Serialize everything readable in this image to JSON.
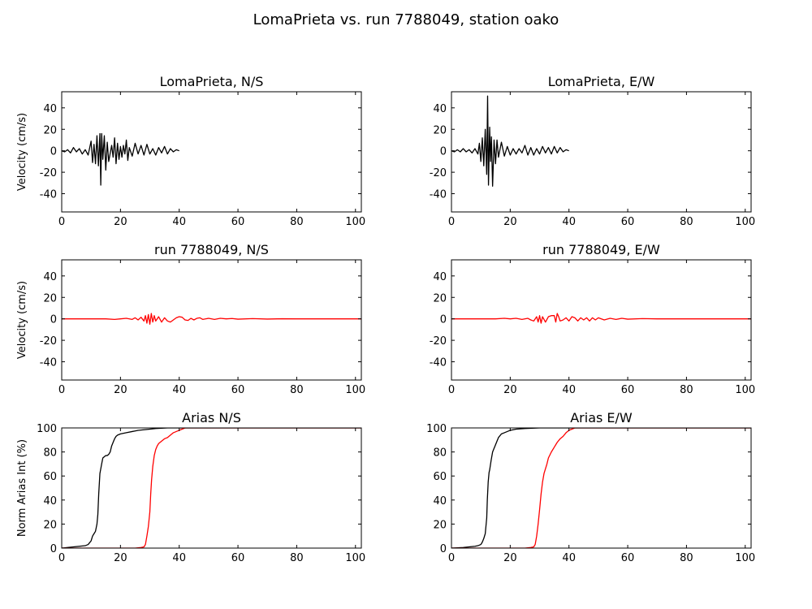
{
  "figure": {
    "title": "LomaPrieta vs. run 7788049, station oako"
  },
  "colors": {
    "recorded": "#000000",
    "simulated": "#ff0000",
    "axes": "#000000",
    "background": "#ffffff"
  },
  "chart_data": [
    {
      "id": "lp-ns",
      "type": "line",
      "title": "LomaPrieta, N/S",
      "xlabel": "",
      "ylabel": "Velocity (cm/s)",
      "xlim": [
        0,
        102
      ],
      "ylim": [
        -57,
        55
      ],
      "xticks": [
        0,
        20,
        40,
        60,
        80,
        100
      ],
      "yticks": [
        -40,
        -20,
        0,
        20,
        40
      ],
      "series": [
        {
          "color": "#000000",
          "x": [
            0,
            1,
            2,
            3,
            4,
            5,
            6,
            7,
            8,
            9,
            10,
            10.5,
            11,
            11.5,
            12,
            12.5,
            13,
            13.3,
            13.6,
            14,
            14.5,
            15,
            15.5,
            16,
            17,
            17.5,
            18,
            18.5,
            19,
            19.5,
            20,
            20.5,
            21,
            21.5,
            22,
            22.5,
            23,
            24,
            25,
            26,
            27,
            28,
            29,
            30,
            31,
            32,
            33,
            34,
            35,
            36,
            37,
            38,
            39,
            40
          ],
          "y": [
            0,
            -1,
            1,
            -2,
            3,
            -1,
            2,
            -3,
            1,
            -4,
            9,
            -11,
            6,
            -12,
            14,
            -14,
            16,
            -32,
            16,
            -8,
            14,
            -18,
            8,
            -10,
            5,
            -6,
            12,
            -12,
            7,
            -8,
            4,
            -6,
            5,
            -3,
            10,
            -9,
            3,
            -5,
            7,
            -3,
            5,
            -4,
            6,
            -3,
            2,
            -4,
            3,
            -2,
            4,
            -3,
            2,
            -1,
            1,
            0
          ]
        }
      ]
    },
    {
      "id": "lp-ew",
      "type": "line",
      "title": "LomaPrieta, E/W",
      "xlabel": "",
      "ylabel": "",
      "xlim": [
        0,
        102
      ],
      "ylim": [
        -57,
        55
      ],
      "xticks": [
        0,
        20,
        40,
        60,
        80,
        100
      ],
      "yticks": [
        -40,
        -20,
        0,
        20,
        40
      ],
      "series": [
        {
          "color": "#000000",
          "x": [
            0,
            1,
            2,
            3,
            4,
            5,
            6,
            7,
            8,
            9,
            9.5,
            10,
            10.5,
            11,
            11.5,
            12,
            12.3,
            12.6,
            13,
            13.3,
            13.6,
            14,
            14.5,
            15,
            15.5,
            16,
            17,
            18,
            19,
            20,
            21,
            22,
            23,
            24,
            25,
            26,
            27,
            28,
            29,
            30,
            31,
            32,
            33,
            34,
            35,
            36,
            37,
            38,
            39,
            40
          ],
          "y": [
            0,
            -1,
            1,
            -1,
            2,
            -1,
            1,
            -2,
            2,
            -3,
            7,
            -10,
            12,
            -14,
            20,
            -22,
            51,
            -32,
            22,
            -10,
            13,
            -33,
            10,
            -12,
            10,
            -6,
            8,
            -5,
            4,
            -4,
            2,
            -3,
            2,
            -2,
            5,
            -4,
            3,
            -4,
            2,
            -3,
            4,
            -2,
            3,
            -3,
            4,
            -2,
            3,
            -1,
            1,
            0
          ]
        }
      ]
    },
    {
      "id": "run-ns",
      "type": "line",
      "title": "run 7788049, N/S",
      "xlabel": "",
      "ylabel": "Velocity (cm/s)",
      "xlim": [
        0,
        102
      ],
      "ylim": [
        -57,
        55
      ],
      "xticks": [
        0,
        20,
        40,
        60,
        80,
        100
      ],
      "yticks": [
        -40,
        -20,
        0,
        20,
        40
      ],
      "series": [
        {
          "color": "#ff0000",
          "x": [
            0,
            5,
            10,
            15,
            18,
            20,
            22,
            24,
            25,
            26,
            27,
            28,
            28.5,
            29,
            29.5,
            30,
            30.5,
            31,
            31.5,
            32,
            33,
            34,
            35,
            36,
            37,
            38,
            39,
            40,
            41,
            42,
            43,
            44,
            45,
            46,
            47,
            48,
            50,
            52,
            54,
            56,
            58,
            60,
            65,
            70,
            75,
            80,
            85,
            90,
            95,
            100,
            102
          ],
          "y": [
            0,
            0,
            0,
            0,
            -0.5,
            0,
            0.5,
            -0.5,
            1,
            -1,
            1.5,
            -2,
            3,
            -4,
            4,
            -5,
            5,
            -3,
            3,
            -2,
            2,
            -3,
            1,
            -2,
            -3,
            -1,
            1,
            2,
            1.5,
            -1,
            -1.5,
            0.5,
            -1,
            0.5,
            1,
            -0.5,
            0.5,
            -0.5,
            0.5,
            0,
            0.3,
            -0.3,
            0.2,
            -0.2,
            0.1,
            0,
            0,
            0,
            0,
            0,
            0
          ]
        }
      ]
    },
    {
      "id": "run-ew",
      "type": "line",
      "title": "run 7788049, E/W",
      "xlabel": "",
      "ylabel": "",
      "xlim": [
        0,
        102
      ],
      "ylim": [
        -57,
        55
      ],
      "xticks": [
        0,
        20,
        40,
        60,
        80,
        100
      ],
      "yticks": [
        -40,
        -20,
        0,
        20,
        40
      ],
      "series": [
        {
          "color": "#ff0000",
          "x": [
            0,
            5,
            10,
            15,
            18,
            20,
            22,
            24,
            26,
            27,
            28,
            29,
            29.5,
            30,
            30.5,
            31,
            32,
            33,
            34,
            35,
            35.5,
            36,
            36.5,
            37,
            38,
            39,
            40,
            41,
            42,
            43,
            44,
            45,
            46,
            47,
            48,
            49,
            50,
            52,
            54,
            56,
            58,
            60,
            65,
            70,
            75,
            80,
            85,
            90,
            95,
            100,
            102
          ],
          "y": [
            0,
            0,
            0,
            0,
            0.5,
            0,
            0.5,
            -0.5,
            0.5,
            -1,
            -2,
            2,
            -3,
            3,
            -4,
            2,
            -3,
            2,
            3,
            3,
            -3,
            5,
            2,
            -2,
            -1,
            1,
            -2,
            2,
            1,
            -2,
            1,
            -1,
            1,
            -2,
            1,
            -1,
            1,
            -1,
            0.5,
            -0.5,
            0.5,
            -0.3,
            0.2,
            0,
            0,
            0,
            0,
            0,
            0,
            0,
            0
          ]
        }
      ]
    },
    {
      "id": "arias-ns",
      "type": "line",
      "title": "Arias N/S",
      "xlabel": "",
      "ylabel": "Norm Arias Int (%)",
      "xlim": [
        0,
        102
      ],
      "ylim": [
        0,
        100
      ],
      "xticks": [
        0,
        20,
        40,
        60,
        80,
        100
      ],
      "yticks": [
        0,
        20,
        40,
        60,
        80,
        100
      ],
      "series": [
        {
          "color": "#000000",
          "x": [
            0,
            2,
            4,
            6,
            8,
            9,
            10,
            10.5,
            11,
            11.5,
            12,
            12.3,
            12.6,
            13,
            13.3,
            13.6,
            14,
            14.5,
            15,
            15.5,
            16,
            16.5,
            17,
            17.5,
            18,
            18.5,
            19,
            20,
            22,
            24,
            25,
            26,
            28,
            30,
            32,
            34,
            36,
            38,
            40,
            45,
            50,
            60,
            80,
            102
          ],
          "y": [
            0,
            0.5,
            1,
            1.5,
            2,
            3,
            6,
            10,
            12,
            14,
            20,
            28,
            45,
            62,
            66,
            70,
            75,
            76,
            77,
            77,
            78,
            80,
            85,
            88,
            91,
            93,
            94,
            95,
            96,
            97,
            97.5,
            98,
            98.5,
            99,
            99.5,
            99.8,
            100,
            100,
            100,
            100,
            100,
            100,
            100,
            100
          ]
        },
        {
          "color": "#ff0000",
          "x": [
            0,
            10,
            20,
            25,
            27,
            28,
            28.5,
            29,
            29.5,
            30,
            30.3,
            30.6,
            31,
            31.5,
            32,
            32.5,
            33,
            34,
            35,
            36,
            37,
            38,
            39,
            40,
            41,
            42,
            45,
            50,
            60,
            80,
            102
          ],
          "y": [
            0,
            0,
            0,
            0,
            0.5,
            1,
            3,
            10,
            18,
            30,
            45,
            57,
            68,
            77,
            82,
            85,
            87,
            89,
            91,
            92,
            94,
            96,
            97,
            98,
            99,
            100,
            100,
            100,
            100,
            100,
            100
          ]
        }
      ]
    },
    {
      "id": "arias-ew",
      "type": "line",
      "title": "Arias E/W",
      "xlabel": "",
      "ylabel": "",
      "xlim": [
        0,
        102
      ],
      "ylim": [
        0,
        100
      ],
      "xticks": [
        0,
        20,
        40,
        60,
        80,
        100
      ],
      "yticks": [
        0,
        20,
        40,
        60,
        80,
        100
      ],
      "series": [
        {
          "color": "#000000",
          "x": [
            0,
            2,
            4,
            6,
            8,
            9,
            10,
            10.5,
            11,
            11.5,
            12,
            12.2,
            12.5,
            12.8,
            13,
            13.5,
            14,
            14.5,
            15,
            15.5,
            16,
            17,
            18,
            19,
            20,
            22,
            25,
            30,
            40,
            60,
            80,
            102
          ],
          "y": [
            0,
            0.2,
            0.5,
            1,
            1.5,
            2,
            3,
            5,
            8,
            12,
            25,
            40,
            55,
            63,
            65,
            73,
            80,
            83,
            86,
            89,
            92,
            95,
            96,
            97,
            98,
            99,
            99.5,
            100,
            100,
            100,
            100,
            100
          ]
        },
        {
          "color": "#ff0000",
          "x": [
            0,
            10,
            20,
            25,
            27,
            28,
            28.5,
            29,
            29.5,
            30,
            30.5,
            31,
            31.5,
            32,
            32.5,
            33,
            34,
            35,
            36,
            37,
            38,
            39,
            40,
            41,
            42,
            45,
            50,
            60,
            80,
            102
          ],
          "y": [
            0,
            0,
            0,
            0,
            0.5,
            1,
            3,
            10,
            20,
            32,
            45,
            55,
            62,
            66,
            70,
            75,
            80,
            84,
            88,
            91,
            93,
            96,
            98,
            99,
            100,
            100,
            100,
            100,
            100,
            100
          ]
        }
      ]
    }
  ]
}
